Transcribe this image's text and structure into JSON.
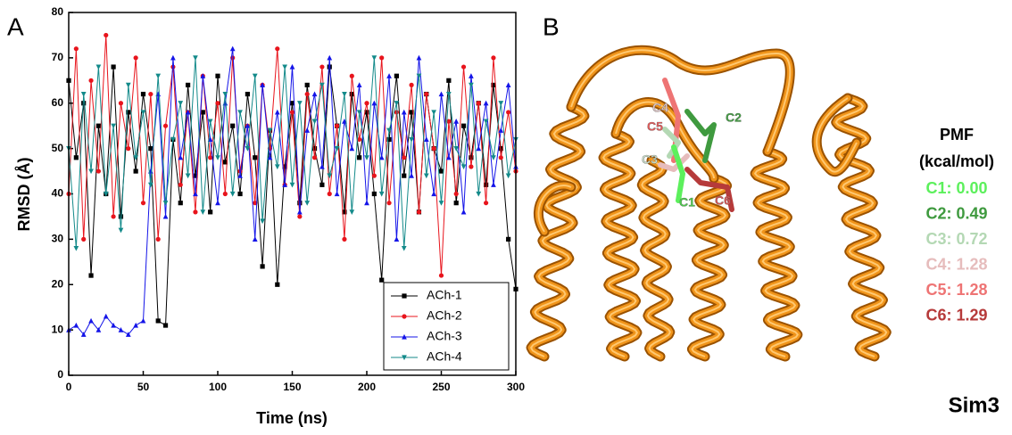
{
  "panel_a_label": "A",
  "chart_data": {
    "type": "line",
    "x_label": "Time (ns)",
    "y_label": "RMSD (Å)",
    "x": [
      0,
      5,
      10,
      15,
      20,
      25,
      30,
      35,
      40,
      45,
      50,
      55,
      60,
      65,
      70,
      75,
      80,
      85,
      90,
      95,
      100,
      105,
      110,
      115,
      120,
      125,
      130,
      135,
      140,
      145,
      150,
      155,
      160,
      165,
      170,
      175,
      180,
      185,
      190,
      195,
      200,
      205,
      210,
      215,
      220,
      225,
      230,
      235,
      240,
      245,
      250,
      255,
      260,
      265,
      270,
      275,
      280,
      285,
      290,
      295,
      300
    ],
    "series": [
      {
        "name": "ACh-1",
        "color": "#000000",
        "marker": "square",
        "values": [
          65,
          48,
          60,
          22,
          55,
          40,
          68,
          35,
          58,
          45,
          62,
          50,
          12,
          11,
          52,
          38,
          64,
          44,
          58,
          36,
          66,
          47,
          55,
          40,
          62,
          48,
          24,
          54,
          20,
          46,
          60,
          38,
          64,
          50,
          42,
          68,
          55,
          36,
          62,
          48,
          58,
          40,
          21,
          52,
          66,
          44,
          58,
          36,
          62,
          50,
          45,
          65,
          38,
          55,
          48,
          60,
          42,
          64,
          50,
          30,
          19
        ]
      },
      {
        "name": "ACh-2",
        "color": "#e8141c",
        "marker": "circle",
        "values": [
          40,
          72,
          30,
          65,
          45,
          75,
          35,
          60,
          50,
          70,
          38,
          62,
          30,
          55,
          68,
          42,
          58,
          36,
          66,
          48,
          60,
          40,
          70,
          45,
          55,
          38,
          64,
          50,
          72,
          42,
          58,
          35,
          62,
          48,
          68,
          40,
          55,
          30,
          66,
          52,
          60,
          44,
          70,
          38,
          58,
          48,
          64,
          36,
          62,
          50,
          22,
          56,
          40,
          68,
          46,
          60,
          38,
          70,
          48,
          58,
          45
        ]
      },
      {
        "name": "ACh-3",
        "color": "#1414e8",
        "marker": "triangle-up",
        "values": [
          10,
          11,
          9,
          12,
          10,
          13,
          11,
          10,
          9,
          11,
          12,
          45,
          62,
          35,
          70,
          48,
          58,
          40,
          66,
          52,
          38,
          60,
          72,
          44,
          55,
          30,
          64,
          48,
          58,
          42,
          68,
          36,
          54,
          62,
          46,
          70,
          40,
          56,
          50,
          64,
          38,
          60,
          48,
          66,
          30,
          58,
          44,
          70,
          52,
          40,
          62,
          48,
          56,
          36,
          66,
          50,
          60,
          42,
          54,
          64,
          46
        ]
      },
      {
        "name": "ACh-4",
        "color": "#138a8a",
        "marker": "triangle-down",
        "values": [
          50,
          28,
          62,
          45,
          68,
          40,
          55,
          32,
          64,
          48,
          58,
          42,
          66,
          38,
          52,
          60,
          44,
          70,
          36,
          56,
          48,
          62,
          40,
          58,
          50,
          66,
          34,
          54,
          46,
          68,
          42,
          60,
          38,
          56,
          64,
          44,
          50,
          62,
          36,
          58,
          48,
          70,
          40,
          54,
          60,
          28,
          52,
          66,
          44,
          58,
          38,
          62,
          50,
          46,
          64,
          40,
          56,
          48,
          60,
          44,
          52
        ]
      }
    ],
    "xlim": [
      0,
      300
    ],
    "xticks": [
      0,
      50,
      100,
      150,
      200,
      250,
      300
    ],
    "ylim": [
      0,
      80
    ],
    "yticks": [
      0,
      10,
      20,
      30,
      40,
      50,
      60,
      70,
      80
    ],
    "legend": "lower right"
  },
  "panel_b": {
    "label": "B",
    "legend_title": "PMF",
    "legend_unit": "(kcal/mol)",
    "entries": [
      {
        "text": "C1: 0.00",
        "color": "#5cf05c"
      },
      {
        "text": "C2: 0.49",
        "color": "#3f9a3f"
      },
      {
        "text": "C3: 0.72",
        "color": "#b4d8b4"
      },
      {
        "text": "C4: 1.28",
        "color": "#e6bcbc"
      },
      {
        "text": "C5: 1.28",
        "color": "#ee7474"
      },
      {
        "text": "C6: 1.29",
        "color": "#b63a3a"
      }
    ],
    "site_labels": [
      {
        "text": "C4",
        "color": "#e0c6c6"
      },
      {
        "text": "C2",
        "color": "#45a045"
      },
      {
        "text": "C5",
        "color": "#e85a5a"
      },
      {
        "text": "C3",
        "color": "#c8dcc8"
      },
      {
        "text": "C1",
        "color": "#4ccc4c"
      },
      {
        "text": "C6",
        "color": "#d85555"
      }
    ],
    "caption": "Sim3"
  }
}
